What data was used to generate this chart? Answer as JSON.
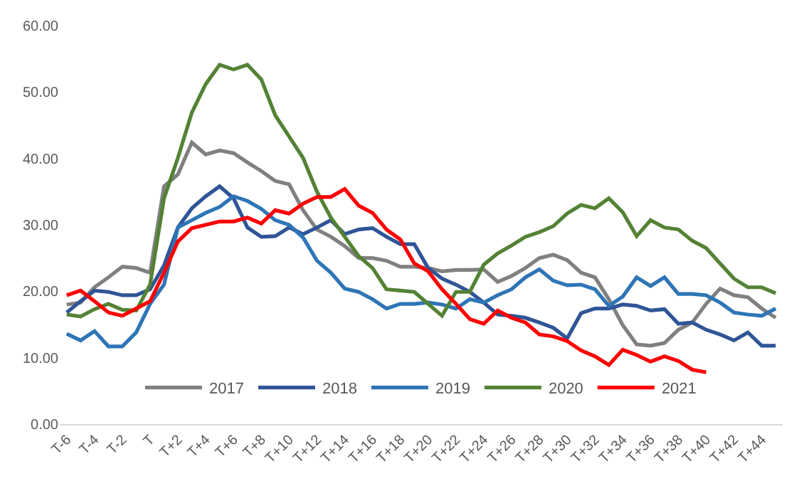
{
  "chart_data": {
    "type": "line",
    "categories": [
      "T-6",
      null,
      "T-4",
      null,
      "T-2",
      null,
      "T",
      null,
      "T+2",
      null,
      "T+4",
      null,
      "T+6",
      null,
      "T+8",
      null,
      "T+10",
      null,
      "T+12",
      null,
      "T+14",
      null,
      "T+16",
      null,
      "T+18",
      null,
      "T+20",
      null,
      "T+22",
      null,
      "T+24",
      null,
      "T+26",
      null,
      "T+28",
      null,
      "T+30",
      null,
      "T+32",
      null,
      "T+34",
      null,
      "T+36",
      null,
      "T+38",
      null,
      "T+40",
      null,
      "T+42",
      null,
      "T+44",
      null
    ],
    "series": [
      {
        "name": "2017",
        "color": "#808080",
        "values": [
          18.0,
          18.3,
          20.6,
          22.1,
          23.7,
          23.5,
          22.8,
          35.8,
          37.6,
          42.4,
          40.6,
          41.2,
          40.8,
          39.4,
          38.1,
          36.6,
          36.1,
          32.2,
          29.3,
          28.2,
          26.8,
          25.0,
          25.0,
          24.6,
          23.7,
          23.7,
          23.5,
          23.0,
          23.2,
          23.2,
          23.3,
          21.4,
          22.3,
          23.5,
          25.0,
          25.5,
          24.7,
          22.8,
          22.1,
          18.8,
          14.9,
          12.0,
          11.8,
          12.2,
          14.2,
          15.3,
          18.1,
          20.4,
          19.4,
          19.1,
          17.4,
          16.0
        ]
      },
      {
        "name": "2018",
        "color": "#2f5597",
        "values": [
          16.8,
          18.5,
          20.1,
          19.9,
          19.4,
          19.4,
          20.3,
          23.9,
          29.6,
          32.5,
          34.3,
          35.8,
          34.0,
          29.6,
          28.2,
          28.3,
          29.6,
          28.6,
          29.6,
          30.7,
          28.6,
          29.3,
          29.5,
          28.2,
          27.1,
          27.1,
          23.5,
          21.9,
          21.0,
          19.9,
          18.3,
          16.5,
          16.3,
          16.0,
          15.3,
          14.5,
          12.9,
          16.7,
          17.4,
          17.4,
          18.0,
          17.8,
          17.1,
          17.3,
          15.1,
          15.3,
          14.2,
          13.5,
          12.6,
          13.8,
          11.8,
          11.8
        ]
      },
      {
        "name": "2019",
        "color": "#2e75b6",
        "values": [
          13.6,
          12.6,
          14.0,
          11.7,
          11.7,
          13.8,
          18.1,
          21.0,
          29.6,
          30.7,
          31.8,
          32.7,
          34.3,
          33.6,
          32.4,
          30.7,
          30.0,
          28.1,
          24.6,
          22.8,
          20.4,
          19.9,
          18.8,
          17.4,
          18.1,
          18.1,
          18.3,
          18.0,
          17.4,
          18.8,
          18.3,
          19.4,
          20.3,
          22.1,
          23.3,
          21.6,
          20.9,
          21.0,
          20.3,
          17.8,
          19.2,
          22.1,
          20.8,
          22.1,
          19.6,
          19.6,
          19.4,
          18.3,
          16.8,
          16.5,
          16.3,
          17.4
        ]
      },
      {
        "name": "2020",
        "color": "#548235",
        "values": [
          16.5,
          16.2,
          17.3,
          18.1,
          17.2,
          17.1,
          21.0,
          34.0,
          40.1,
          46.9,
          51.2,
          54.1,
          53.4,
          54.1,
          51.9,
          46.5,
          43.3,
          40.1,
          35.0,
          31.1,
          28.2,
          25.3,
          23.5,
          20.3,
          20.1,
          19.9,
          18.1,
          16.3,
          19.9,
          19.9,
          24.0,
          25.7,
          26.9,
          28.2,
          28.9,
          29.8,
          31.7,
          33.0,
          32.5,
          34.0,
          31.9,
          28.3,
          30.7,
          29.6,
          29.3,
          27.6,
          26.5,
          24.2,
          21.9,
          20.6,
          20.6,
          19.7
        ]
      },
      {
        "name": "2021",
        "color": "#ff0000",
        "values": [
          19.4,
          20.1,
          18.5,
          16.8,
          16.3,
          17.4,
          18.5,
          22.8,
          27.5,
          29.5,
          30.0,
          30.5,
          30.5,
          31.1,
          30.2,
          32.2,
          31.7,
          33.2,
          34.2,
          34.2,
          35.4,
          32.9,
          31.8,
          29.3,
          27.8,
          24.2,
          23.0,
          20.3,
          18.1,
          15.8,
          15.1,
          17.1,
          16.0,
          15.3,
          13.5,
          13.2,
          12.5,
          11.1,
          10.2,
          8.9,
          11.2,
          10.4,
          9.4,
          10.2,
          9.5,
          8.2,
          7.8,
          null,
          null,
          null,
          null,
          null
        ]
      }
    ],
    "ylim": [
      0,
      60
    ],
    "yticks": [
      {
        "value": 0,
        "label": "0.00"
      },
      {
        "value": 10,
        "label": "10.00"
      },
      {
        "value": 20,
        "label": "20.00"
      },
      {
        "value": 30,
        "label": "30.00"
      },
      {
        "value": 40,
        "label": "40.00"
      },
      {
        "value": 50,
        "label": "50.00"
      },
      {
        "value": 60,
        "label": "60.00"
      }
    ],
    "grid": false,
    "legend": "bottom",
    "marker": "none",
    "line_style": "solid"
  }
}
